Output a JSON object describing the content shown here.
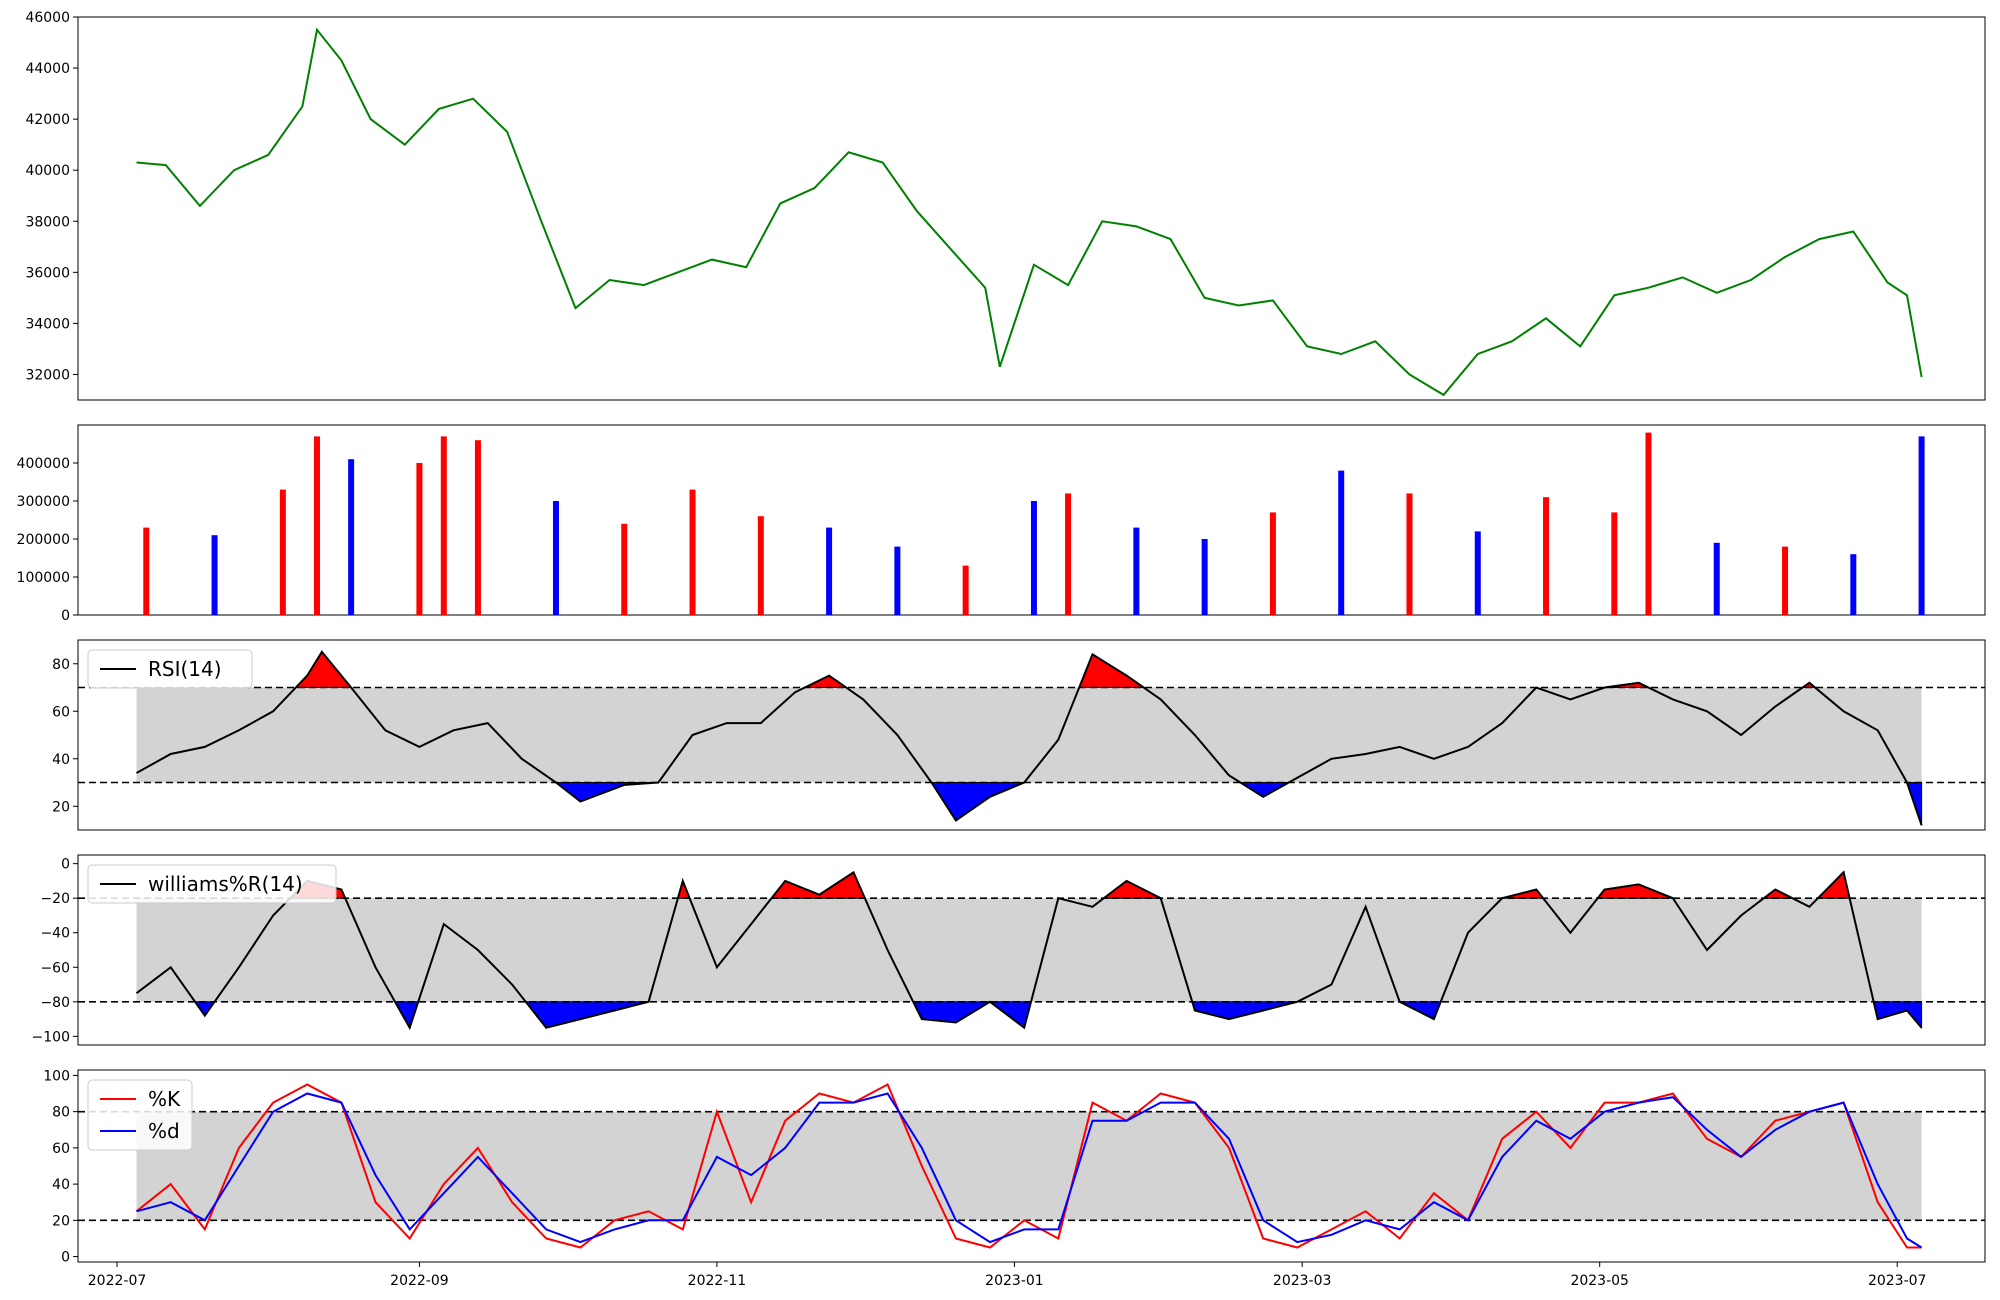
{
  "chart_data": [
    {
      "type": "line",
      "panel": "price",
      "x_range": [
        "2022-07-05",
        "2023-07-06"
      ],
      "ylim": [
        31000,
        46000
      ],
      "y_ticks": [
        32000,
        34000,
        36000,
        38000,
        40000,
        42000,
        44000,
        46000
      ],
      "y_tick_labels": [
        "32000",
        "34000",
        "36000",
        "38000",
        "40000",
        "42000",
        "44000",
        "46000"
      ],
      "series": [
        {
          "color": "#008000",
          "x": [
            "2022-07-05",
            "2022-07-11",
            "2022-07-18",
            "2022-07-25",
            "2022-08-01",
            "2022-08-08",
            "2022-08-11",
            "2022-08-16",
            "2022-08-22",
            "2022-08-29",
            "2022-09-05",
            "2022-09-12",
            "2022-09-19",
            "2022-09-26",
            "2022-10-03",
            "2022-10-10",
            "2022-10-17",
            "2022-10-24",
            "2022-10-31",
            "2022-11-07",
            "2022-11-14",
            "2022-11-21",
            "2022-11-28",
            "2022-12-05",
            "2022-12-12",
            "2022-12-19",
            "2022-12-26",
            "2022-12-29",
            "2023-01-05",
            "2023-01-12",
            "2023-01-19",
            "2023-01-26",
            "2023-02-02",
            "2023-02-09",
            "2023-02-16",
            "2023-02-23",
            "2023-03-02",
            "2023-03-09",
            "2023-03-16",
            "2023-03-23",
            "2023-03-30",
            "2023-04-06",
            "2023-04-13",
            "2023-04-20",
            "2023-04-27",
            "2023-05-04",
            "2023-05-11",
            "2023-05-18",
            "2023-05-25",
            "2023-06-01",
            "2023-06-08",
            "2023-06-15",
            "2023-06-22",
            "2023-06-29",
            "2023-07-03",
            "2023-07-06"
          ],
          "y": [
            40300,
            40200,
            38600,
            40000,
            40600,
            42500,
            45500,
            44300,
            42000,
            41000,
            42400,
            42800,
            41500,
            38000,
            34600,
            35700,
            35500,
            36000,
            36500,
            36200,
            38700,
            39300,
            40700,
            40300,
            38400,
            36900,
            35400,
            32300,
            36300,
            35500,
            38000,
            37800,
            37300,
            35000,
            34700,
            34900,
            33100,
            32800,
            33300,
            32000,
            31200,
            32800,
            33300,
            34200,
            33100,
            35100,
            35400,
            35800,
            35200,
            35700,
            36600,
            37300,
            37600,
            35600,
            35100,
            31900
          ]
        }
      ]
    },
    {
      "type": "bar",
      "panel": "volume",
      "ylim": [
        0,
        500000
      ],
      "y_ticks": [
        0,
        100000,
        200000,
        300000,
        400000
      ],
      "y_tick_labels": [
        "0",
        "100000",
        "200000",
        "300000",
        "400000"
      ],
      "colors": {
        "up": "#ff0000",
        "down": "#0000ff",
        "flat": "#000000"
      },
      "x": [
        "2022-07-07",
        "2022-07-21",
        "2022-08-04",
        "2022-08-11",
        "2022-08-18",
        "2022-09-01",
        "2022-09-06",
        "2022-09-13",
        "2022-09-29",
        "2022-10-13",
        "2022-10-27",
        "2022-11-10",
        "2022-11-24",
        "2022-12-08",
        "2022-12-22",
        "2023-01-05",
        "2023-01-12",
        "2023-01-26",
        "2023-02-09",
        "2023-02-23",
        "2023-03-09",
        "2023-03-23",
        "2023-04-06",
        "2023-04-20",
        "2023-05-04",
        "2023-05-11",
        "2023-05-25",
        "2023-06-08",
        "2023-06-22",
        "2023-07-06"
      ],
      "values": [
        230000,
        210000,
        330000,
        470000,
        410000,
        400000,
        470000,
        460000,
        300000,
        240000,
        330000,
        260000,
        230000,
        180000,
        130000,
        300000,
        320000,
        230000,
        200000,
        270000,
        380000,
        320000,
        220000,
        310000,
        270000,
        480000,
        190000,
        180000,
        160000,
        470000
      ],
      "bar_colors": [
        "red",
        "blue",
        "red",
        "red",
        "blue",
        "red",
        "red",
        "red",
        "blue",
        "red",
        "red",
        "red",
        "blue",
        "blue",
        "red",
        "blue",
        "red",
        "blue",
        "blue",
        "red",
        "blue",
        "red",
        "blue",
        "red",
        "red",
        "red",
        "blue",
        "red",
        "blue",
        "blue"
      ]
    },
    {
      "type": "line",
      "panel": "rsi",
      "ylim": [
        10,
        90
      ],
      "y_ticks": [
        20,
        40,
        60,
        80
      ],
      "y_tick_labels": [
        "20",
        "40",
        "60",
        "80"
      ],
      "band": [
        30,
        70
      ],
      "series": [
        {
          "name": "RSI(14)",
          "color": "#000000",
          "x": [
            "2022-07-05",
            "2022-07-12",
            "2022-07-19",
            "2022-07-26",
            "2022-08-02",
            "2022-08-09",
            "2022-08-12",
            "2022-08-18",
            "2022-08-25",
            "2022-09-01",
            "2022-09-08",
            "2022-09-15",
            "2022-09-22",
            "2022-09-29",
            "2022-10-04",
            "2022-10-13",
            "2022-10-20",
            "2022-10-27",
            "2022-11-03",
            "2022-11-10",
            "2022-11-17",
            "2022-11-24",
            "2022-12-01",
            "2022-12-08",
            "2022-12-15",
            "2022-12-20",
            "2022-12-27",
            "2023-01-03",
            "2023-01-10",
            "2023-01-17",
            "2023-01-24",
            "2023-01-31",
            "2023-02-07",
            "2023-02-14",
            "2023-02-21",
            "2023-02-28",
            "2023-03-07",
            "2023-03-14",
            "2023-03-21",
            "2023-03-28",
            "2023-04-04",
            "2023-04-11",
            "2023-04-18",
            "2023-04-25",
            "2023-05-02",
            "2023-05-09",
            "2023-05-16",
            "2023-05-23",
            "2023-05-30",
            "2023-06-06",
            "2023-06-13",
            "2023-06-20",
            "2023-06-27",
            "2023-07-03",
            "2023-07-06"
          ],
          "y": [
            34,
            42,
            45,
            52,
            60,
            75,
            85,
            70,
            52,
            45,
            52,
            55,
            40,
            30,
            22,
            29,
            30,
            50,
            55,
            55,
            68,
            75,
            65,
            50,
            30,
            14,
            24,
            30,
            48,
            84,
            75,
            65,
            50,
            33,
            24,
            32,
            40,
            42,
            45,
            40,
            45,
            55,
            70,
            65,
            70,
            72,
            65,
            60,
            50,
            62,
            72,
            60,
            52,
            30,
            12
          ]
        }
      ]
    },
    {
      "type": "line",
      "panel": "williams",
      "ylim": [
        -105,
        5
      ],
      "y_ticks": [
        -100,
        -80,
        -60,
        -40,
        -20,
        0
      ],
      "y_tick_labels": [
        "−100",
        "−80",
        "−60",
        "−40",
        "−20",
        "0"
      ],
      "band": [
        -80,
        -20
      ],
      "series": [
        {
          "name": "williams%R(14)",
          "color": "#000000",
          "x": [
            "2022-07-05",
            "2022-07-12",
            "2022-07-19",
            "2022-07-26",
            "2022-08-02",
            "2022-08-09",
            "2022-08-16",
            "2022-08-23",
            "2022-08-30",
            "2022-09-06",
            "2022-09-13",
            "2022-09-20",
            "2022-09-27",
            "2022-10-04",
            "2022-10-11",
            "2022-10-18",
            "2022-10-25",
            "2022-11-01",
            "2022-11-08",
            "2022-11-15",
            "2022-11-22",
            "2022-11-29",
            "2022-12-06",
            "2022-12-13",
            "2022-12-20",
            "2022-12-27",
            "2023-01-03",
            "2023-01-10",
            "2023-01-17",
            "2023-01-24",
            "2023-01-31",
            "2023-02-07",
            "2023-02-14",
            "2023-02-21",
            "2023-02-28",
            "2023-03-07",
            "2023-03-14",
            "2023-03-21",
            "2023-03-28",
            "2023-04-04",
            "2023-04-11",
            "2023-04-18",
            "2023-04-25",
            "2023-05-02",
            "2023-05-09",
            "2023-05-16",
            "2023-05-23",
            "2023-05-30",
            "2023-06-06",
            "2023-06-13",
            "2023-06-20",
            "2023-06-27",
            "2023-07-03",
            "2023-07-06"
          ],
          "y": [
            -75,
            -60,
            -88,
            -60,
            -30,
            -10,
            -15,
            -60,
            -95,
            -35,
            -50,
            -70,
            -95,
            -90,
            -85,
            -80,
            -10,
            -60,
            -35,
            -10,
            -18,
            -5,
            -50,
            -90,
            -92,
            -80,
            -95,
            -20,
            -25,
            -10,
            -20,
            -85,
            -90,
            -85,
            -80,
            -70,
            -25,
            -80,
            -90,
            -40,
            -20,
            -15,
            -40,
            -15,
            -12,
            -20,
            -50,
            -30,
            -15,
            -25,
            -5,
            -90,
            -85,
            -95
          ]
        }
      ]
    },
    {
      "type": "line",
      "panel": "stochastic",
      "ylim": [
        -3,
        103
      ],
      "y_ticks": [
        0,
        20,
        40,
        60,
        80,
        100
      ],
      "y_tick_labels": [
        "0",
        "20",
        "40",
        "60",
        "80",
        "100"
      ],
      "band": [
        20,
        80
      ],
      "series": [
        {
          "name": "%K",
          "color": "#ff0000",
          "x": [
            "2022-07-05",
            "2022-07-12",
            "2022-07-19",
            "2022-07-26",
            "2022-08-02",
            "2022-08-09",
            "2022-08-16",
            "2022-08-23",
            "2022-08-30",
            "2022-09-06",
            "2022-09-13",
            "2022-09-20",
            "2022-09-27",
            "2022-10-04",
            "2022-10-11",
            "2022-10-18",
            "2022-10-25",
            "2022-11-01",
            "2022-11-08",
            "2022-11-15",
            "2022-11-22",
            "2022-11-29",
            "2022-12-06",
            "2022-12-13",
            "2022-12-20",
            "2022-12-27",
            "2023-01-03",
            "2023-01-10",
            "2023-01-17",
            "2023-01-24",
            "2023-01-31",
            "2023-02-07",
            "2023-02-14",
            "2023-02-21",
            "2023-02-28",
            "2023-03-07",
            "2023-03-14",
            "2023-03-21",
            "2023-03-28",
            "2023-04-04",
            "2023-04-11",
            "2023-04-18",
            "2023-04-25",
            "2023-05-02",
            "2023-05-09",
            "2023-05-16",
            "2023-05-23",
            "2023-05-30",
            "2023-06-06",
            "2023-06-13",
            "2023-06-20",
            "2023-06-27",
            "2023-07-03",
            "2023-07-06"
          ],
          "y": [
            25,
            40,
            15,
            60,
            85,
            95,
            85,
            30,
            10,
            40,
            60,
            30,
            10,
            5,
            20,
            25,
            15,
            80,
            30,
            75,
            90,
            85,
            95,
            50,
            10,
            5,
            20,
            10,
            85,
            75,
            90,
            85,
            60,
            10,
            5,
            15,
            25,
            10,
            35,
            20,
            65,
            80,
            60,
            85,
            85,
            90,
            65,
            55,
            75,
            80,
            85,
            30,
            5,
            5
          ]
        },
        {
          "name": "%d",
          "color": "#0000ff",
          "x": [
            "2022-07-05",
            "2022-07-12",
            "2022-07-19",
            "2022-07-26",
            "2022-08-02",
            "2022-08-09",
            "2022-08-16",
            "2022-08-23",
            "2022-08-30",
            "2022-09-06",
            "2022-09-13",
            "2022-09-20",
            "2022-09-27",
            "2022-10-04",
            "2022-10-11",
            "2022-10-18",
            "2022-10-25",
            "2022-11-01",
            "2022-11-08",
            "2022-11-15",
            "2022-11-22",
            "2022-11-29",
            "2022-12-06",
            "2022-12-13",
            "2022-12-20",
            "2022-12-27",
            "2023-01-03",
            "2023-01-10",
            "2023-01-17",
            "2023-01-24",
            "2023-01-31",
            "2023-02-07",
            "2023-02-14",
            "2023-02-21",
            "2023-02-28",
            "2023-03-07",
            "2023-03-14",
            "2023-03-21",
            "2023-03-28",
            "2023-04-04",
            "2023-04-11",
            "2023-04-18",
            "2023-04-25",
            "2023-05-02",
            "2023-05-09",
            "2023-05-16",
            "2023-05-23",
            "2023-05-30",
            "2023-06-06",
            "2023-06-13",
            "2023-06-20",
            "2023-06-27",
            "2023-07-03",
            "2023-07-06"
          ],
          "y": [
            25,
            30,
            20,
            50,
            80,
            90,
            85,
            45,
            15,
            35,
            55,
            35,
            15,
            8,
            15,
            20,
            20,
            55,
            45,
            60,
            85,
            85,
            90,
            60,
            20,
            8,
            15,
            15,
            75,
            75,
            85,
            85,
            65,
            20,
            8,
            12,
            20,
            15,
            30,
            20,
            55,
            75,
            65,
            80,
            85,
            88,
            70,
            55,
            70,
            80,
            85,
            40,
            10,
            5
          ]
        }
      ]
    }
  ],
  "x_axis": {
    "ticks": [
      "2022-07-01",
      "2022-09-01",
      "2022-11-01",
      "2023-01-01",
      "2023-03-01",
      "2023-05-01",
      "2023-07-01"
    ],
    "tick_labels": [
      "2022-07",
      "2022-09",
      "2022-11",
      "2023-01",
      "2023-03",
      "2023-05",
      "2023-07"
    ]
  },
  "legend": {
    "rsi": "RSI(14)",
    "williams": "williams%R(14)",
    "stoch_k": "%K",
    "stoch_d": "%d"
  },
  "colors": {
    "price": "#008000",
    "overbought_fill": "#ff0000",
    "oversold_fill": "#0000ff",
    "band_fill": "#d3d3d3",
    "k_line": "#ff0000",
    "d_line": "#0000ff"
  }
}
